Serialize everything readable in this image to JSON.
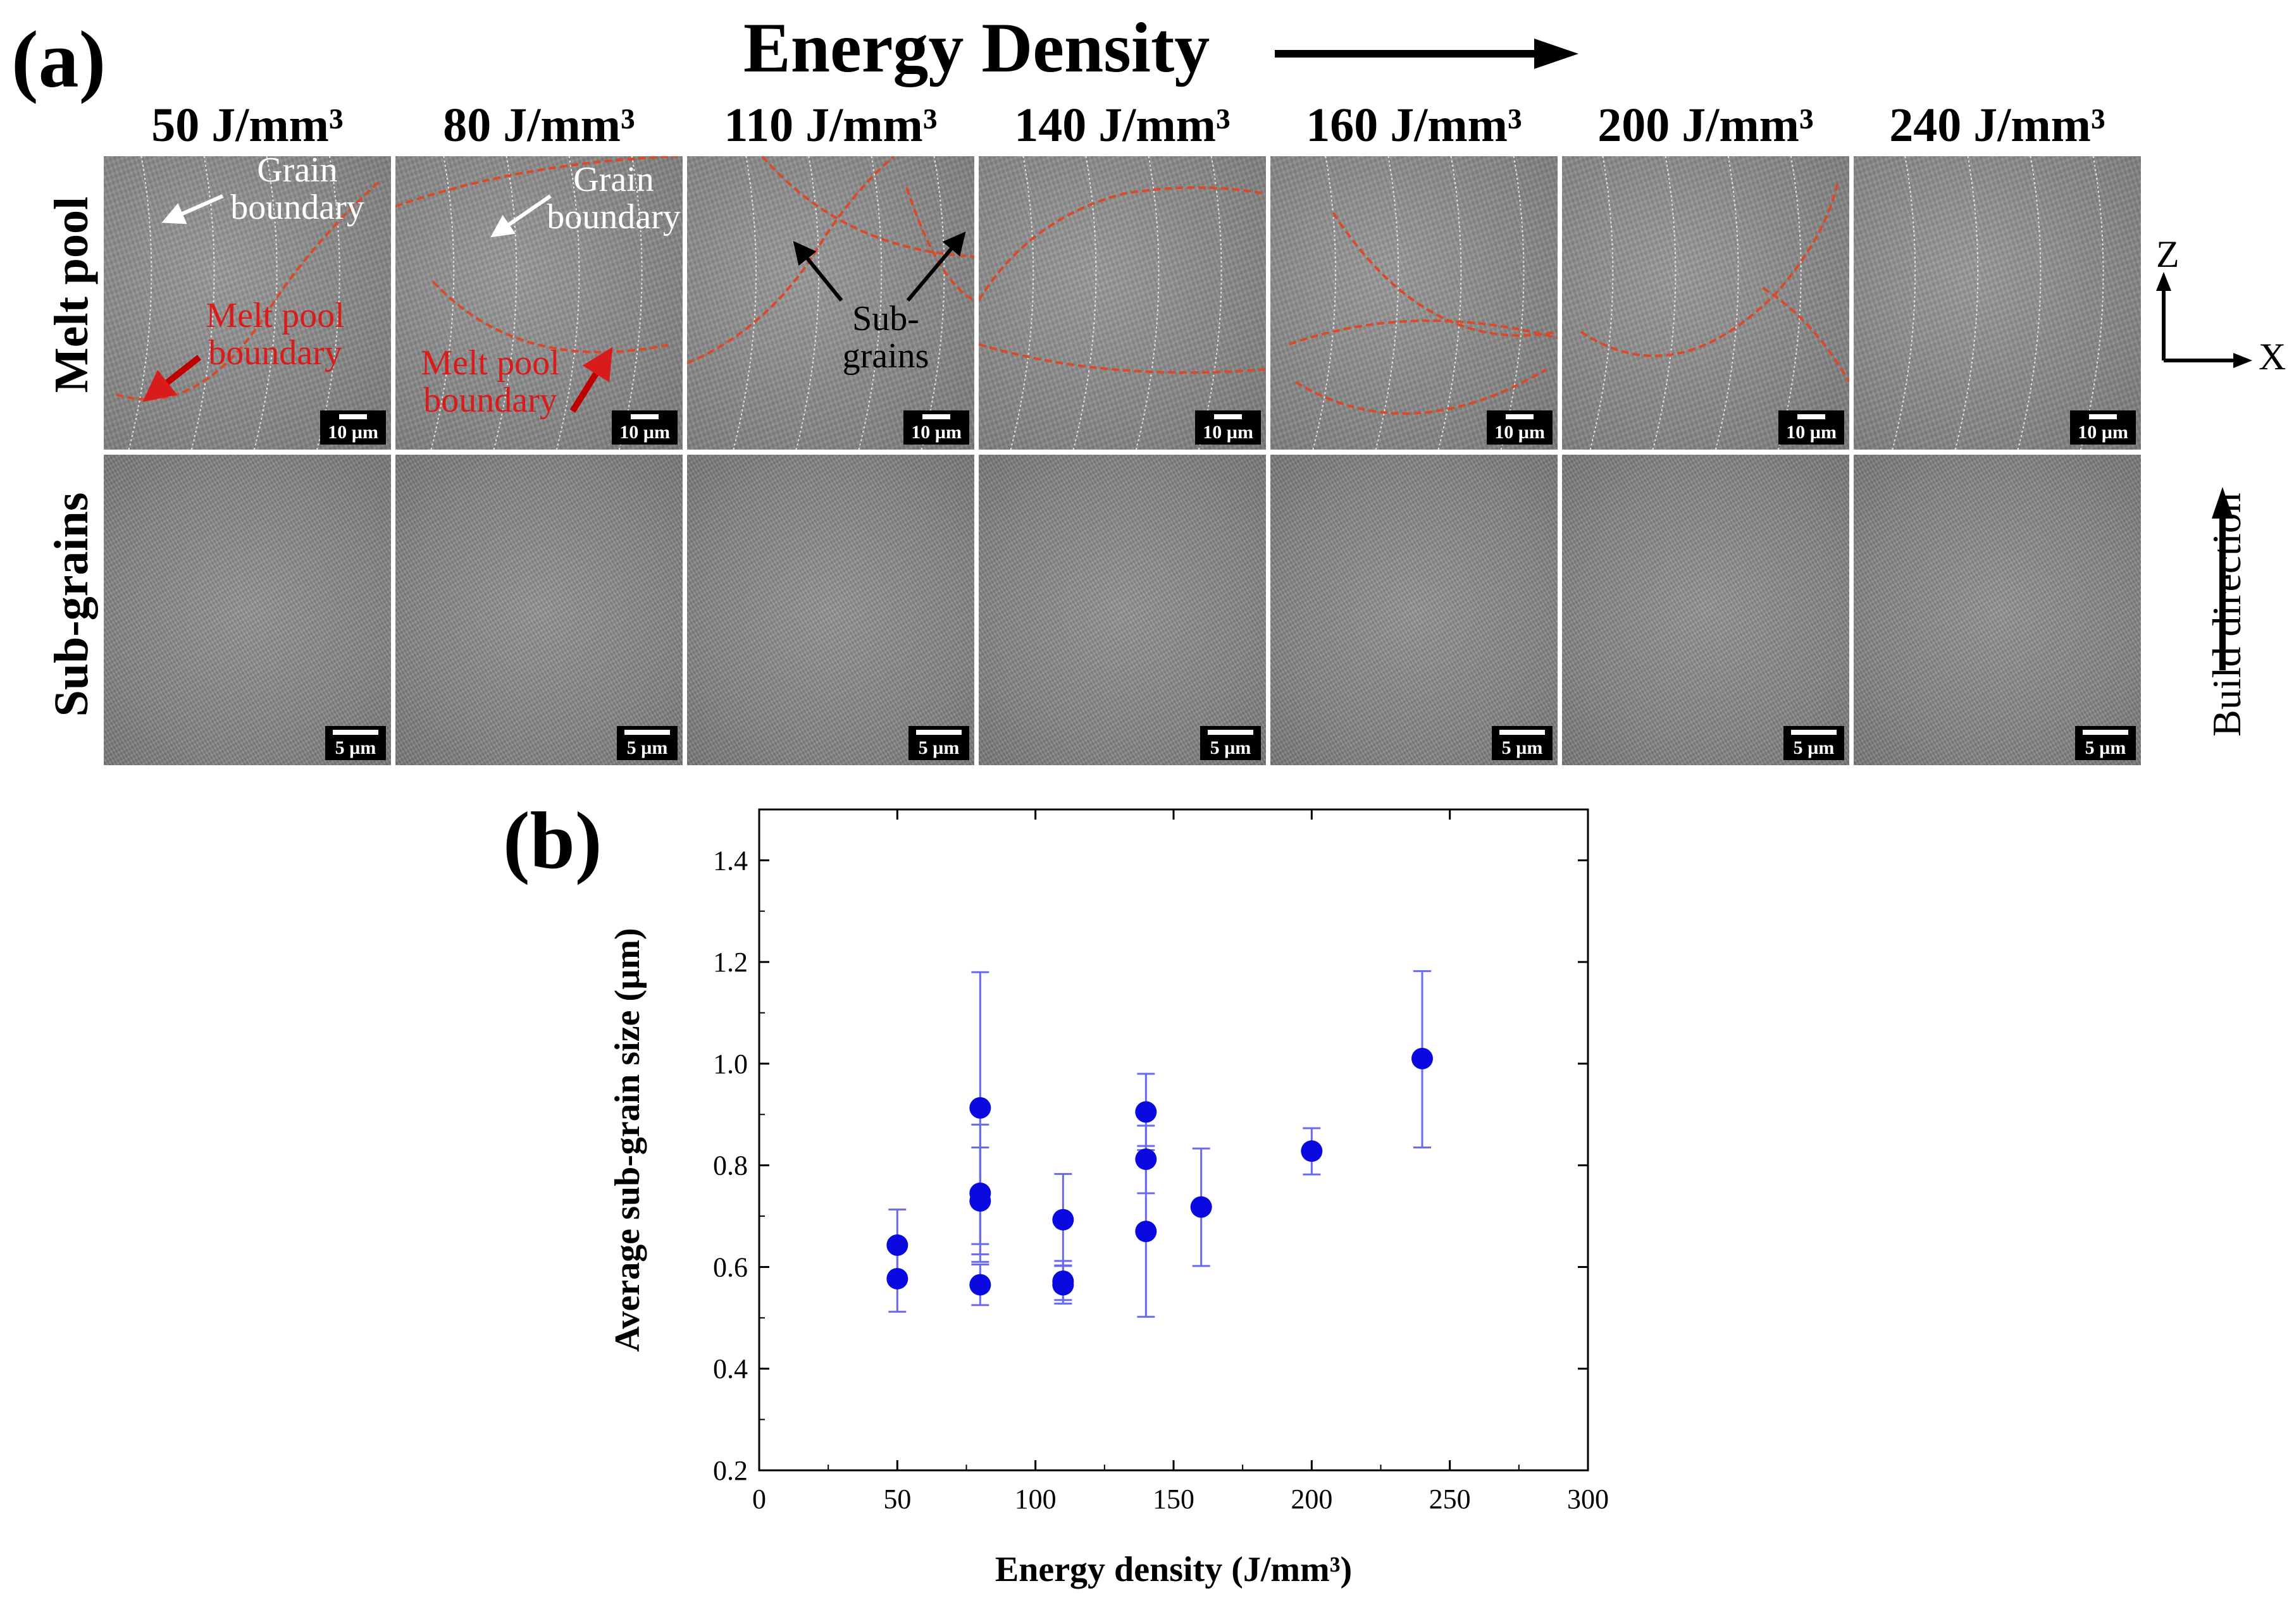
{
  "panel_a": {
    "label": "(a)",
    "title": "Energy Density",
    "columns": [
      "50 J/mm³",
      "80 J/mm³",
      "110 J/mm³",
      "140 J/mm³",
      "160 J/mm³",
      "200 J/mm³",
      "240 J/mm³"
    ],
    "rows": [
      "Melt pool",
      "Sub-grains"
    ],
    "scalebar_top": "10 µm",
    "scalebar_bottom": "5 µm",
    "annotations": {
      "grain_boundary_1": "Grain boundary",
      "grain_boundary_2": "Grain boundary",
      "melt_pool_boundary_1": "Melt pool boundary",
      "melt_pool_boundary_2": "Melt pool boundary",
      "sub_grains": "Sub- grains"
    },
    "axes_z": "Z",
    "axes_x": "X",
    "build_direction": "Build direction",
    "colors": {
      "melt_pool_boundary": "#d84a2a",
      "grain_boundary": "#ffffff"
    }
  },
  "panel_b": {
    "label": "(b)"
  },
  "chart_data": {
    "type": "scatter",
    "title": "",
    "xlabel": "Energy density (J/mm³)",
    "ylabel": "Average sub-grain size (µm)",
    "xlim": [
      0,
      300
    ],
    "ylim": [
      0.2,
      1.5
    ],
    "xticks": [
      0,
      50,
      100,
      150,
      200,
      250,
      300
    ],
    "yticks": [
      0.2,
      0.4,
      0.6,
      0.8,
      1.0,
      1.2,
      1.4
    ],
    "xtick_labels": [
      "0",
      "50",
      "100",
      "150",
      "200",
      "250",
      "300"
    ],
    "ytick_labels": [
      "0.2",
      "0.4",
      "0.6",
      "0.8",
      "1.0",
      "1.2",
      "1.4"
    ],
    "marker_color": "#0a0ae0",
    "errorbar_color": "#6a6af0",
    "points": [
      {
        "x": 50,
        "y": 0.643,
        "err_low": 0.573,
        "err_high": 0.713
      },
      {
        "x": 50,
        "y": 0.577,
        "err_low": 0.512,
        "err_high": 0.642
      },
      {
        "x": 80,
        "y": 0.913,
        "err_low": 0.645,
        "err_high": 1.18
      },
      {
        "x": 80,
        "y": 0.745,
        "err_low": 0.61,
        "err_high": 0.88
      },
      {
        "x": 80,
        "y": 0.73,
        "err_low": 0.625,
        "err_high": 0.835
      },
      {
        "x": 80,
        "y": 0.565,
        "err_low": 0.525,
        "err_high": 0.605
      },
      {
        "x": 110,
        "y": 0.693,
        "err_low": 0.603,
        "err_high": 0.783
      },
      {
        "x": 110,
        "y": 0.572,
        "err_low": 0.535,
        "err_high": 0.612
      },
      {
        "x": 110,
        "y": 0.565,
        "err_low": 0.528,
        "err_high": 0.602
      },
      {
        "x": 140,
        "y": 0.905,
        "err_low": 0.83,
        "err_high": 0.98
      },
      {
        "x": 140,
        "y": 0.812,
        "err_low": 0.745,
        "err_high": 0.878
      },
      {
        "x": 140,
        "y": 0.67,
        "err_low": 0.502,
        "err_high": 0.838
      },
      {
        "x": 160,
        "y": 0.718,
        "err_low": 0.602,
        "err_high": 0.833
      },
      {
        "x": 200,
        "y": 0.828,
        "err_low": 0.782,
        "err_high": 0.873
      },
      {
        "x": 240,
        "y": 1.01,
        "err_low": 0.835,
        "err_high": 1.182
      }
    ]
  }
}
